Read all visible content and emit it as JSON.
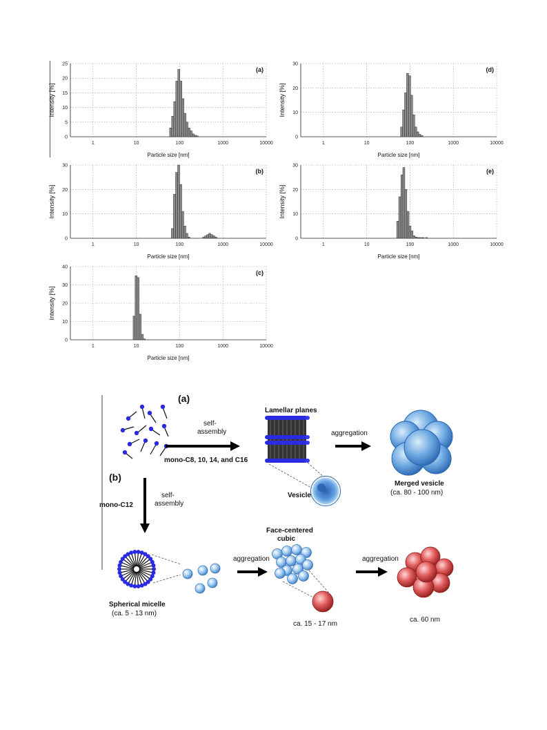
{
  "chart_data": [
    {
      "id": "a",
      "panel_label": "(a)",
      "type": "bar",
      "xlabel": "Particle size [nm]",
      "ylabel": "Intensity [%]",
      "xscale": "log",
      "xlim": [
        0.3,
        10000
      ],
      "ylim": [
        0,
        25
      ],
      "xticks": [
        "1",
        "10",
        "100",
        "1000",
        "10000"
      ],
      "yticks": [
        0,
        5,
        10,
        15,
        20,
        25
      ],
      "grid": true,
      "bins": [
        [
          62,
          3
        ],
        [
          69,
          7
        ],
        [
          77,
          12
        ],
        [
          86,
          19
        ],
        [
          96,
          23
        ],
        [
          107,
          19
        ],
        [
          119,
          13
        ],
        [
          133,
          8
        ],
        [
          148,
          5
        ],
        [
          165,
          3
        ],
        [
          184,
          2
        ],
        [
          205,
          1
        ],
        [
          229,
          0.5
        ],
        [
          255,
          0.3
        ]
      ]
    },
    {
      "id": "b",
      "panel_label": "(b)",
      "type": "bar",
      "xlabel": "Particle size [nm]",
      "ylabel": "Intensity [%]",
      "xscale": "log",
      "xlim": [
        0.3,
        10000
      ],
      "ylim": [
        0,
        30
      ],
      "xticks": [
        "1",
        "10",
        "100",
        "1000",
        "10000"
      ],
      "yticks": [
        0,
        10,
        20,
        30
      ],
      "grid": true,
      "bins": [
        [
          68,
          4
        ],
        [
          76,
          18
        ],
        [
          85,
          27
        ],
        [
          95,
          30
        ],
        [
          106,
          22
        ],
        [
          118,
          11
        ],
        [
          132,
          5
        ],
        [
          147,
          2
        ],
        [
          164,
          0.5
        ],
        [
          360,
          0.5
        ],
        [
          400,
          1
        ],
        [
          445,
          1.5
        ],
        [
          495,
          2
        ],
        [
          550,
          1.5
        ],
        [
          615,
          1
        ],
        [
          685,
          0.5
        ]
      ]
    },
    {
      "id": "c",
      "panel_label": "(c)",
      "type": "bar",
      "xlabel": "Particle size [nm]",
      "ylabel": "Intensity [%]",
      "xscale": "log",
      "xlim": [
        0.3,
        10000
      ],
      "ylim": [
        0,
        40
      ],
      "xticks": [
        "1",
        "10",
        "100",
        "1000",
        "10000"
      ],
      "yticks": [
        0,
        10,
        20,
        30,
        40
      ],
      "grid": true,
      "bins": [
        [
          8.9,
          13
        ],
        [
          9.9,
          35
        ],
        [
          11.0,
          34
        ],
        [
          12.3,
          14
        ],
        [
          13.7,
          3
        ],
        [
          15.3,
          0.5
        ]
      ]
    },
    {
      "id": "d",
      "panel_label": "(d)",
      "type": "bar",
      "xlabel": "Particle size [nm]",
      "ylabel": "Intensity [%]",
      "xscale": "log",
      "xlim": [
        0.3,
        10000
      ],
      "ylim": [
        0,
        30
      ],
      "xticks": [
        "1",
        "10",
        "100",
        "1000",
        "10000"
      ],
      "yticks": [
        0,
        10,
        20,
        30
      ],
      "grid": true,
      "bins": [
        [
          64,
          4
        ],
        [
          71,
          11
        ],
        [
          79,
          18
        ],
        [
          88,
          26
        ],
        [
          98,
          25
        ],
        [
          109,
          17
        ],
        [
          122,
          9
        ],
        [
          136,
          4
        ],
        [
          151,
          2
        ],
        [
          168,
          1
        ],
        [
          188,
          0.5
        ]
      ]
    },
    {
      "id": "e",
      "panel_label": "(e)",
      "type": "bar",
      "xlabel": "Particle size [nm]",
      "ylabel": "Intensity [%]",
      "xscale": "log",
      "xlim": [
        0.3,
        10000
      ],
      "ylim": [
        0,
        30
      ],
      "xticks": [
        "1",
        "10",
        "100",
        "1000",
        "10000"
      ],
      "yticks": [
        0,
        10,
        20,
        30
      ],
      "grid": true,
      "bins": [
        [
          52,
          7
        ],
        [
          58,
          17
        ],
        [
          65,
          26
        ],
        [
          72,
          29
        ],
        [
          80,
          20
        ],
        [
          90,
          11
        ],
        [
          100,
          5
        ],
        [
          111,
          3
        ],
        [
          124,
          1
        ],
        [
          138,
          0.5
        ],
        [
          155,
          0.3
        ],
        [
          175,
          0.3
        ],
        [
          200,
          0.3
        ],
        [
          240,
          0.3
        ]
      ]
    }
  ],
  "scheme": {
    "label_a": "(a)",
    "label_b": "(b)",
    "self_assembly_top_1": "self-",
    "self_assembly_top_2": "assembly",
    "mono_c8_label": "mono-C8, 10, 14, and C16",
    "lamellar_planes": "Lamellar planes",
    "vesicle": "Vesicle",
    "aggregation_top": "aggregation",
    "merged_vesicle": "Merged vesicle",
    "merged_vesicle_size": "(ca. 80 - 100 nm)",
    "mono_c12_label": "mono-C12",
    "self_assembly_left_1": "self-",
    "self_assembly_left_2": "assembly",
    "spherical_micelle": "Spherical micelle",
    "spherical_micelle_size": "(ca. 5 - 13 nm)",
    "aggregation_mid": "aggregation",
    "face_centered_1": "Face-centered",
    "face_centered_2": "cubic",
    "fcc_size": "ca. 15 - 17 nm",
    "aggregation_right": "aggregation",
    "red_cluster_size": "ca. 60 nm",
    "colors": {
      "blue_head": "#2a2ae0",
      "vesicle_blue": "#4e90d8",
      "red": "#d23a3a"
    }
  }
}
